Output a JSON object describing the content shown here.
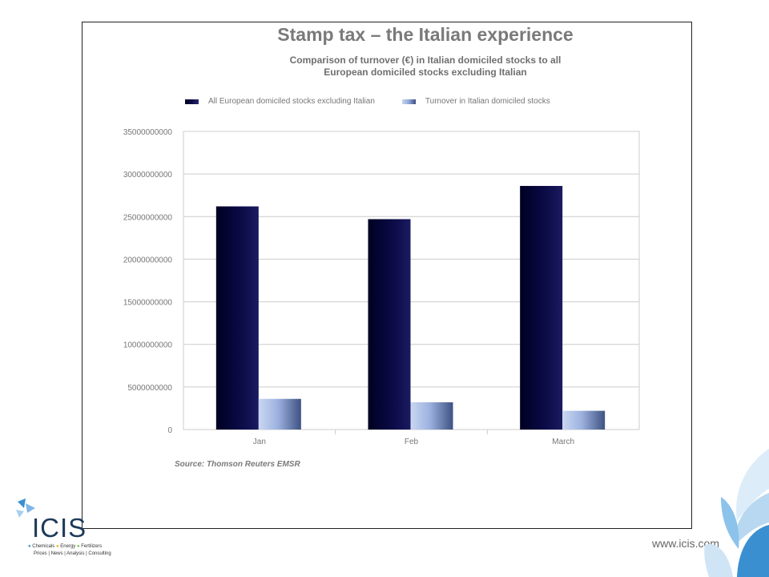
{
  "slide": {
    "title": "Stamp tax – the Italian experience",
    "subtitle_line1": "Comparison of turnover (€) in Italian domiciled stocks to all",
    "subtitle_line2": "European domiciled stocks excluding Italian",
    "source": "Source: Thomson Reuters EMSR",
    "website": "www.icis.com",
    "logo": {
      "brand": "ICIS",
      "tagline_items": [
        "Chemicals",
        "Energy",
        "Fertilizers"
      ],
      "tagline_line2": "Prices | News | Analysis | Consulting"
    }
  },
  "colors": {
    "series_dark": "#0a0a45",
    "series_light": "#8fa6d6",
    "grid": "#cccccc",
    "axis_text": "#777777",
    "brand_blue": "#3a8fd1"
  },
  "chart_data": {
    "type": "bar",
    "categories": [
      "Jan",
      "Feb",
      "March"
    ],
    "series": [
      {
        "name": "All European domiciled stocks excluding Italian",
        "values": [
          26200000000,
          24700000000,
          28600000000
        ]
      },
      {
        "name": "Turnover in Italian domiciled stocks",
        "values": [
          3600000000,
          3200000000,
          2200000000
        ]
      }
    ],
    "ylim": [
      0,
      35000000000
    ],
    "yticks": [
      0,
      5000000000,
      10000000000,
      15000000000,
      20000000000,
      25000000000,
      30000000000,
      35000000000
    ],
    "ytick_labels": [
      "0",
      "5000000000",
      "10000000000",
      "15000000000",
      "20000000000",
      "25000000000",
      "30000000000",
      "35000000000"
    ],
    "grid": true,
    "legend_position": "top"
  }
}
